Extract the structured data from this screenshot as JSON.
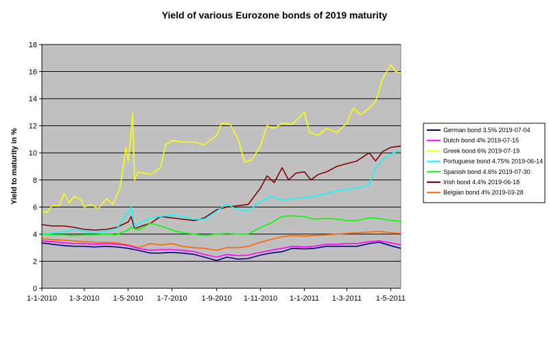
{
  "chart_data": {
    "type": "line",
    "title": "Yield of various Eurozone bonds of 2019 maturity",
    "ylabel": "Yield to maturity in %",
    "xlabel": "",
    "ylim": [
      0,
      18
    ],
    "yticks": [
      0,
      2,
      4,
      6,
      8,
      10,
      12,
      14,
      16,
      18
    ],
    "xlim": [
      "2010-01-01",
      "2011-05-15"
    ],
    "xticks": [
      {
        "date": "2010-01-01",
        "label": "1-1-2010"
      },
      {
        "date": "2010-03-01",
        "label": "1-3-2010"
      },
      {
        "date": "2010-05-01",
        "label": "1-5-2010"
      },
      {
        "date": "2010-07-01",
        "label": "1-7-2010"
      },
      {
        "date": "2010-09-01",
        "label": "1-9-2010"
      },
      {
        "date": "2010-11-01",
        "label": "1-11-2010"
      },
      {
        "date": "2011-01-01",
        "label": "1-1-2011"
      },
      {
        "date": "2011-03-01",
        "label": "1-3-2011"
      },
      {
        "date": "2011-05-01",
        "label": "1-5-2011"
      }
    ],
    "grid": "horizontal",
    "plot_background": "#c0c0c0",
    "legend_position": "right",
    "series": [
      {
        "name": "German bond 3.5% 2019-07-04",
        "color": "#000080",
        "points": [
          [
            "2010-01-01",
            3.35
          ],
          [
            "2010-01-15",
            3.25
          ],
          [
            "2010-02-01",
            3.15
          ],
          [
            "2010-02-15",
            3.1
          ],
          [
            "2010-03-01",
            3.1
          ],
          [
            "2010-03-15",
            3.05
          ],
          [
            "2010-04-01",
            3.1
          ],
          [
            "2010-04-15",
            3.05
          ],
          [
            "2010-05-01",
            2.95
          ],
          [
            "2010-05-15",
            2.8
          ],
          [
            "2010-06-01",
            2.6
          ],
          [
            "2010-06-15",
            2.6
          ],
          [
            "2010-07-01",
            2.65
          ],
          [
            "2010-07-15",
            2.6
          ],
          [
            "2010-08-01",
            2.5
          ],
          [
            "2010-08-15",
            2.3
          ],
          [
            "2010-09-01",
            2.05
          ],
          [
            "2010-09-15",
            2.3
          ],
          [
            "2010-10-01",
            2.15
          ],
          [
            "2010-10-15",
            2.2
          ],
          [
            "2010-11-01",
            2.45
          ],
          [
            "2010-11-15",
            2.6
          ],
          [
            "2010-12-01",
            2.7
          ],
          [
            "2010-12-15",
            2.95
          ],
          [
            "2011-01-01",
            2.9
          ],
          [
            "2011-01-15",
            2.95
          ],
          [
            "2011-02-01",
            3.1
          ],
          [
            "2011-02-15",
            3.1
          ],
          [
            "2011-03-01",
            3.1
          ],
          [
            "2011-03-15",
            3.1
          ],
          [
            "2011-04-01",
            3.3
          ],
          [
            "2011-04-15",
            3.4
          ],
          [
            "2011-05-01",
            3.15
          ],
          [
            "2011-05-15",
            2.95
          ]
        ]
      },
      {
        "name": "Dutch bond 4% 2019-07-15",
        "color": "#ff00ff",
        "points": [
          [
            "2010-01-01",
            3.5
          ],
          [
            "2010-01-15",
            3.45
          ],
          [
            "2010-02-01",
            3.35
          ],
          [
            "2010-02-15",
            3.3
          ],
          [
            "2010-03-01",
            3.3
          ],
          [
            "2010-03-15",
            3.25
          ],
          [
            "2010-04-01",
            3.3
          ],
          [
            "2010-04-15",
            3.25
          ],
          [
            "2010-05-01",
            3.15
          ],
          [
            "2010-05-15",
            2.95
          ],
          [
            "2010-06-01",
            2.8
          ],
          [
            "2010-06-15",
            2.85
          ],
          [
            "2010-07-01",
            2.85
          ],
          [
            "2010-07-15",
            2.8
          ],
          [
            "2010-08-01",
            2.7
          ],
          [
            "2010-08-15",
            2.5
          ],
          [
            "2010-09-01",
            2.3
          ],
          [
            "2010-09-15",
            2.5
          ],
          [
            "2010-10-01",
            2.4
          ],
          [
            "2010-10-15",
            2.45
          ],
          [
            "2010-11-01",
            2.65
          ],
          [
            "2010-11-15",
            2.8
          ],
          [
            "2010-12-01",
            2.95
          ],
          [
            "2010-12-15",
            3.1
          ],
          [
            "2011-01-01",
            3.05
          ],
          [
            "2011-01-15",
            3.1
          ],
          [
            "2011-02-01",
            3.25
          ],
          [
            "2011-02-15",
            3.25
          ],
          [
            "2011-03-01",
            3.3
          ],
          [
            "2011-03-15",
            3.3
          ],
          [
            "2011-04-01",
            3.45
          ],
          [
            "2011-04-15",
            3.5
          ],
          [
            "2011-05-01",
            3.35
          ],
          [
            "2011-05-15",
            3.2
          ]
        ]
      },
      {
        "name": "Greek bond 6% 2019-07-19",
        "color": "#ffff00",
        "points": [
          [
            "2010-01-01",
            5.7
          ],
          [
            "2010-01-08",
            5.6
          ],
          [
            "2010-01-15",
            6.1
          ],
          [
            "2010-01-25",
            6.1
          ],
          [
            "2010-02-01",
            7.0
          ],
          [
            "2010-02-08",
            6.3
          ],
          [
            "2010-02-15",
            6.8
          ],
          [
            "2010-02-25",
            6.5
          ],
          [
            "2010-03-01",
            6.0
          ],
          [
            "2010-03-10",
            6.2
          ],
          [
            "2010-03-20",
            5.9
          ],
          [
            "2010-04-01",
            6.6
          ],
          [
            "2010-04-10",
            6.2
          ],
          [
            "2010-04-20",
            7.5
          ],
          [
            "2010-04-28",
            10.4
          ],
          [
            "2010-05-01",
            9.4
          ],
          [
            "2010-05-04",
            10.8
          ],
          [
            "2010-05-07",
            12.9
          ],
          [
            "2010-05-10",
            8.0
          ],
          [
            "2010-05-15",
            8.6
          ],
          [
            "2010-06-01",
            8.4
          ],
          [
            "2010-06-15",
            8.9
          ],
          [
            "2010-06-22",
            10.6
          ],
          [
            "2010-07-01",
            10.9
          ],
          [
            "2010-07-15",
            10.8
          ],
          [
            "2010-08-01",
            10.8
          ],
          [
            "2010-08-15",
            10.6
          ],
          [
            "2010-09-01",
            11.3
          ],
          [
            "2010-09-08",
            12.2
          ],
          [
            "2010-09-20",
            12.1
          ],
          [
            "2010-10-01",
            11.0
          ],
          [
            "2010-10-10",
            9.3
          ],
          [
            "2010-10-20",
            9.5
          ],
          [
            "2010-11-01",
            10.5
          ],
          [
            "2010-11-10",
            12.0
          ],
          [
            "2010-11-20",
            11.8
          ],
          [
            "2010-12-01",
            12.2
          ],
          [
            "2010-12-15",
            12.1
          ],
          [
            "2011-01-01",
            13.0
          ],
          [
            "2011-01-08",
            11.5
          ],
          [
            "2011-01-20",
            11.3
          ],
          [
            "2011-02-01",
            11.8
          ],
          [
            "2011-02-15",
            11.5
          ],
          [
            "2011-03-01",
            12.2
          ],
          [
            "2011-03-10",
            13.3
          ],
          [
            "2011-03-20",
            12.8
          ],
          [
            "2011-04-01",
            13.3
          ],
          [
            "2011-04-10",
            13.8
          ],
          [
            "2011-04-20",
            15.5
          ],
          [
            "2011-05-01",
            16.5
          ],
          [
            "2011-05-08",
            16.0
          ],
          [
            "2011-05-15",
            15.9
          ]
        ]
      },
      {
        "name": "Portuguese bond 4.75% 2019-06-14",
        "color": "#00ffff",
        "points": [
          [
            "2010-01-01",
            4.0
          ],
          [
            "2010-01-15",
            4.05
          ],
          [
            "2010-02-01",
            4.2
          ],
          [
            "2010-02-15",
            4.35
          ],
          [
            "2010-03-01",
            4.2
          ],
          [
            "2010-03-15",
            4.1
          ],
          [
            "2010-04-01",
            4.2
          ],
          [
            "2010-04-15",
            4.4
          ],
          [
            "2010-05-01",
            5.6
          ],
          [
            "2010-05-05",
            6.0
          ],
          [
            "2010-05-10",
            4.6
          ],
          [
            "2010-05-20",
            4.9
          ],
          [
            "2010-06-01",
            5.2
          ],
          [
            "2010-06-15",
            5.3
          ],
          [
            "2010-07-01",
            5.4
          ],
          [
            "2010-07-15",
            5.3
          ],
          [
            "2010-08-01",
            5.1
          ],
          [
            "2010-08-15",
            5.1
          ],
          [
            "2010-09-01",
            5.7
          ],
          [
            "2010-09-15",
            6.2
          ],
          [
            "2010-10-01",
            5.8
          ],
          [
            "2010-10-15",
            5.7
          ],
          [
            "2010-11-01",
            6.4
          ],
          [
            "2010-11-15",
            6.8
          ],
          [
            "2010-12-01",
            6.5
          ],
          [
            "2010-12-15",
            6.6
          ],
          [
            "2011-01-01",
            6.7
          ],
          [
            "2011-01-15",
            6.8
          ],
          [
            "2011-02-01",
            7.0
          ],
          [
            "2011-02-15",
            7.2
          ],
          [
            "2011-03-01",
            7.3
          ],
          [
            "2011-03-15",
            7.4
          ],
          [
            "2011-04-01",
            7.6
          ],
          [
            "2011-04-10",
            8.9
          ],
          [
            "2011-04-20",
            9.5
          ],
          [
            "2011-05-01",
            9.9
          ],
          [
            "2011-05-15",
            10.2
          ]
        ]
      },
      {
        "name": "Spanish bond 4.6% 2019-07-30",
        "color": "#00ff00",
        "points": [
          [
            "2010-01-01",
            4.0
          ],
          [
            "2010-01-15",
            3.95
          ],
          [
            "2010-02-01",
            3.95
          ],
          [
            "2010-02-15",
            3.9
          ],
          [
            "2010-03-01",
            3.95
          ],
          [
            "2010-03-15",
            3.95
          ],
          [
            "2010-04-01",
            4.0
          ],
          [
            "2010-04-15",
            3.95
          ],
          [
            "2010-05-01",
            4.3
          ],
          [
            "2010-05-05",
            4.5
          ],
          [
            "2010-05-15",
            4.3
          ],
          [
            "2010-06-01",
            4.8
          ],
          [
            "2010-06-15",
            4.6
          ],
          [
            "2010-07-01",
            4.3
          ],
          [
            "2010-07-15",
            4.1
          ],
          [
            "2010-08-01",
            4.0
          ],
          [
            "2010-08-15",
            3.9
          ],
          [
            "2010-09-01",
            4.0
          ],
          [
            "2010-09-15",
            4.05
          ],
          [
            "2010-10-01",
            4.0
          ],
          [
            "2010-10-15",
            4.0
          ],
          [
            "2010-11-01",
            4.5
          ],
          [
            "2010-11-15",
            4.8
          ],
          [
            "2010-12-01",
            5.3
          ],
          [
            "2010-12-15",
            5.35
          ],
          [
            "2011-01-01",
            5.3
          ],
          [
            "2011-01-15",
            5.1
          ],
          [
            "2011-02-01",
            5.15
          ],
          [
            "2011-02-15",
            5.1
          ],
          [
            "2011-03-01",
            5.0
          ],
          [
            "2011-03-15",
            5.0
          ],
          [
            "2011-04-01",
            5.2
          ],
          [
            "2011-04-15",
            5.15
          ],
          [
            "2011-05-01",
            5.0
          ],
          [
            "2011-05-15",
            4.95
          ]
        ]
      },
      {
        "name": "Irish bond 4.4% 2019-06-18",
        "color": "#800000",
        "points": [
          [
            "2010-01-01",
            4.7
          ],
          [
            "2010-01-15",
            4.6
          ],
          [
            "2010-02-01",
            4.6
          ],
          [
            "2010-02-15",
            4.5
          ],
          [
            "2010-03-01",
            4.35
          ],
          [
            "2010-03-15",
            4.3
          ],
          [
            "2010-04-01",
            4.35
          ],
          [
            "2010-04-15",
            4.5
          ],
          [
            "2010-05-01",
            4.9
          ],
          [
            "2010-05-05",
            5.3
          ],
          [
            "2010-05-10",
            4.4
          ],
          [
            "2010-05-20",
            4.6
          ],
          [
            "2010-06-01",
            4.8
          ],
          [
            "2010-06-15",
            5.3
          ],
          [
            "2010-07-01",
            5.2
          ],
          [
            "2010-07-15",
            5.1
          ],
          [
            "2010-08-01",
            5.0
          ],
          [
            "2010-08-15",
            5.2
          ],
          [
            "2010-09-01",
            5.8
          ],
          [
            "2010-09-15",
            6.0
          ],
          [
            "2010-10-01",
            6.1
          ],
          [
            "2010-10-15",
            6.2
          ],
          [
            "2010-11-01",
            7.4
          ],
          [
            "2010-11-10",
            8.3
          ],
          [
            "2010-11-20",
            7.8
          ],
          [
            "2010-12-01",
            8.9
          ],
          [
            "2010-12-10",
            8.0
          ],
          [
            "2010-12-20",
            8.5
          ],
          [
            "2011-01-01",
            8.6
          ],
          [
            "2011-01-10",
            8.0
          ],
          [
            "2011-01-20",
            8.4
          ],
          [
            "2011-02-01",
            8.6
          ],
          [
            "2011-02-15",
            9.0
          ],
          [
            "2011-03-01",
            9.2
          ],
          [
            "2011-03-15",
            9.4
          ],
          [
            "2011-04-01",
            10.0
          ],
          [
            "2011-04-10",
            9.4
          ],
          [
            "2011-04-20",
            10.1
          ],
          [
            "2011-05-01",
            10.4
          ],
          [
            "2011-05-15",
            10.5
          ]
        ]
      },
      {
        "name": "Belgian bond 4% 2019-03-28",
        "color": "#ff6600",
        "points": [
          [
            "2010-01-01",
            3.65
          ],
          [
            "2010-01-15",
            3.6
          ],
          [
            "2010-02-01",
            3.55
          ],
          [
            "2010-02-15",
            3.5
          ],
          [
            "2010-03-01",
            3.45
          ],
          [
            "2010-03-15",
            3.4
          ],
          [
            "2010-04-01",
            3.4
          ],
          [
            "2010-04-15",
            3.35
          ],
          [
            "2010-05-01",
            3.2
          ],
          [
            "2010-05-15",
            3.0
          ],
          [
            "2010-06-01",
            3.3
          ],
          [
            "2010-06-15",
            3.2
          ],
          [
            "2010-07-01",
            3.3
          ],
          [
            "2010-07-15",
            3.1
          ],
          [
            "2010-08-01",
            3.0
          ],
          [
            "2010-08-15",
            2.95
          ],
          [
            "2010-09-01",
            2.8
          ],
          [
            "2010-09-15",
            3.0
          ],
          [
            "2010-10-01",
            3.0
          ],
          [
            "2010-10-15",
            3.1
          ],
          [
            "2010-11-01",
            3.4
          ],
          [
            "2010-11-15",
            3.6
          ],
          [
            "2010-12-01",
            3.8
          ],
          [
            "2010-12-15",
            3.9
          ],
          [
            "2011-01-01",
            3.85
          ],
          [
            "2011-01-15",
            3.9
          ],
          [
            "2011-02-01",
            3.95
          ],
          [
            "2011-02-15",
            4.0
          ],
          [
            "2011-03-01",
            4.05
          ],
          [
            "2011-03-15",
            4.1
          ],
          [
            "2011-04-01",
            4.15
          ],
          [
            "2011-04-15",
            4.2
          ],
          [
            "2011-05-01",
            4.1
          ],
          [
            "2011-05-15",
            4.05
          ]
        ]
      }
    ]
  }
}
